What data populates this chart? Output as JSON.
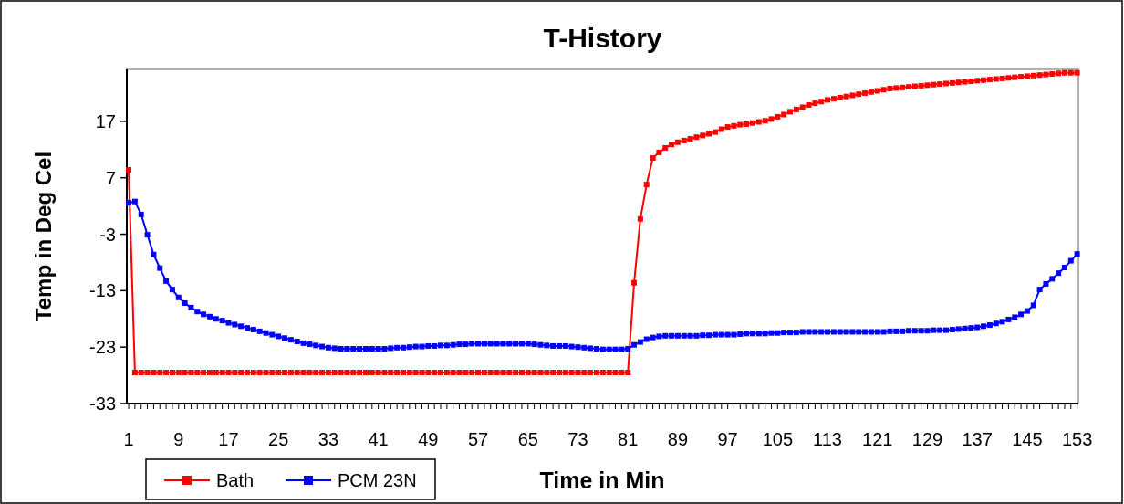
{
  "chart_data": {
    "type": "line",
    "title": "T-History",
    "xlabel": "Time in Min",
    "ylabel": "Temp in Deg Cel",
    "x": [
      1,
      2,
      3,
      4,
      5,
      6,
      7,
      8,
      9,
      10,
      11,
      12,
      13,
      14,
      15,
      16,
      17,
      18,
      19,
      20,
      21,
      22,
      23,
      24,
      25,
      26,
      27,
      28,
      29,
      30,
      31,
      32,
      33,
      34,
      35,
      36,
      37,
      38,
      39,
      40,
      41,
      42,
      43,
      44,
      45,
      46,
      47,
      48,
      49,
      50,
      51,
      52,
      53,
      54,
      55,
      56,
      57,
      58,
      59,
      60,
      61,
      62,
      63,
      64,
      65,
      66,
      67,
      68,
      69,
      70,
      71,
      72,
      73,
      74,
      75,
      76,
      77,
      78,
      79,
      80,
      81,
      82,
      83,
      84,
      85,
      86,
      87,
      88,
      89,
      90,
      91,
      92,
      93,
      94,
      95,
      96,
      97,
      98,
      99,
      100,
      101,
      102,
      103,
      104,
      105,
      106,
      107,
      108,
      109,
      110,
      111,
      112,
      113,
      114,
      115,
      116,
      117,
      118,
      119,
      120,
      121,
      122,
      123,
      124,
      125,
      126,
      127,
      128,
      129,
      130,
      131,
      132,
      133,
      134,
      135,
      136,
      137,
      138,
      139,
      140,
      141,
      142,
      143,
      144,
      145,
      146,
      147,
      148,
      149,
      150,
      151,
      152,
      153
    ],
    "series": [
      {
        "name": "Bath",
        "color": "#ff0000",
        "values": [
          8.4,
          -27.5,
          -27.5,
          -27.5,
          -27.5,
          -27.5,
          -27.5,
          -27.5,
          -27.5,
          -27.5,
          -27.5,
          -27.5,
          -27.5,
          -27.5,
          -27.5,
          -27.5,
          -27.5,
          -27.5,
          -27.5,
          -27.5,
          -27.5,
          -27.5,
          -27.5,
          -27.5,
          -27.5,
          -27.5,
          -27.5,
          -27.5,
          -27.5,
          -27.5,
          -27.5,
          -27.5,
          -27.5,
          -27.5,
          -27.5,
          -27.5,
          -27.5,
          -27.5,
          -27.5,
          -27.5,
          -27.5,
          -27.5,
          -27.5,
          -27.5,
          -27.5,
          -27.5,
          -27.5,
          -27.5,
          -27.5,
          -27.5,
          -27.5,
          -27.5,
          -27.5,
          -27.5,
          -27.5,
          -27.5,
          -27.5,
          -27.5,
          -27.5,
          -27.5,
          -27.5,
          -27.5,
          -27.5,
          -27.5,
          -27.5,
          -27.5,
          -27.5,
          -27.5,
          -27.5,
          -27.5,
          -27.5,
          -27.5,
          -27.5,
          -27.5,
          -27.5,
          -27.5,
          -27.5,
          -27.5,
          -27.5,
          -27.5,
          -27.5,
          -11.6,
          -0.3,
          5.8,
          10.5,
          11.5,
          12.3,
          12.9,
          13.3,
          13.6,
          13.9,
          14.2,
          14.5,
          14.8,
          15.1,
          15.6,
          16,
          16.2,
          16.4,
          16.5,
          16.7,
          16.9,
          17.1,
          17.4,
          17.8,
          18.2,
          18.7,
          19.1,
          19.5,
          19.9,
          20.2,
          20.5,
          20.8,
          21,
          21.2,
          21.4,
          21.6,
          21.8,
          22,
          22.2,
          22.4,
          22.6,
          22.8,
          22.9,
          23,
          23.1,
          23.2,
          23.3,
          23.4,
          23.5,
          23.6,
          23.7,
          23.8,
          23.9,
          24,
          24.1,
          24.2,
          24.3,
          24.4,
          24.5,
          24.6,
          24.7,
          24.8,
          24.9,
          25,
          25.1,
          25.2,
          25.3,
          25.4,
          25.5,
          25.6,
          25.6,
          25.6
        ]
      },
      {
        "name": "PCM 23N",
        "color": "#0000ff",
        "values": [
          2.6,
          2.8,
          0.5,
          -3.1,
          -6.6,
          -9,
          -11.3,
          -12.8,
          -14.2,
          -15.2,
          -16,
          -16.7,
          -17.2,
          -17.6,
          -18,
          -18.3,
          -18.7,
          -19,
          -19.3,
          -19.6,
          -19.9,
          -20.2,
          -20.5,
          -20.8,
          -21.1,
          -21.4,
          -21.7,
          -22,
          -22.3,
          -22.5,
          -22.7,
          -22.9,
          -23.1,
          -23.2,
          -23.3,
          -23.3,
          -23.3,
          -23.3,
          -23.3,
          -23.3,
          -23.3,
          -23.3,
          -23.2,
          -23.1,
          -23.1,
          -23,
          -22.9,
          -22.9,
          -22.8,
          -22.8,
          -22.7,
          -22.7,
          -22.6,
          -22.5,
          -22.5,
          -22.4,
          -22.4,
          -22.4,
          -22.4,
          -22.4,
          -22.4,
          -22.4,
          -22.4,
          -22.4,
          -22.4,
          -22.5,
          -22.6,
          -22.7,
          -22.8,
          -22.8,
          -22.8,
          -22.9,
          -23,
          -23.1,
          -23.2,
          -23.3,
          -23.4,
          -23.4,
          -23.4,
          -23.4,
          -23.3,
          -22.6,
          -22.1,
          -21.6,
          -21.3,
          -21.1,
          -21,
          -21,
          -21,
          -21,
          -21,
          -21,
          -20.9,
          -20.9,
          -20.8,
          -20.8,
          -20.8,
          -20.8,
          -20.7,
          -20.6,
          -20.6,
          -20.6,
          -20.6,
          -20.5,
          -20.5,
          -20.4,
          -20.4,
          -20.4,
          -20.3,
          -20.3,
          -20.3,
          -20.3,
          -20.3,
          -20.3,
          -20.3,
          -20.3,
          -20.3,
          -20.3,
          -20.3,
          -20.3,
          -20.3,
          -20.3,
          -20.2,
          -20.2,
          -20.2,
          -20.1,
          -20.1,
          -20.1,
          -20.1,
          -20,
          -20,
          -20,
          -19.9,
          -19.8,
          -19.7,
          -19.6,
          -19.5,
          -19.3,
          -19.1,
          -18.8,
          -18.5,
          -18.1,
          -17.7,
          -17.2,
          -16.6,
          -15.6,
          -12.8,
          -11.8,
          -10.9,
          -9.9,
          -8.9,
          -7.7,
          -6.5
        ]
      }
    ],
    "xlim": [
      0.7,
      153.2
    ],
    "xticks": [
      1,
      9,
      17,
      25,
      33,
      41,
      49,
      57,
      65,
      73,
      81,
      89,
      97,
      105,
      113,
      121,
      129,
      137,
      145,
      153
    ],
    "ylim": [
      -33,
      26.2
    ],
    "yticks": [
      -33,
      -23,
      -13,
      -3,
      7,
      17
    ],
    "marker": "square",
    "line_style": "solid",
    "legend": "bottom left",
    "grid": false
  }
}
